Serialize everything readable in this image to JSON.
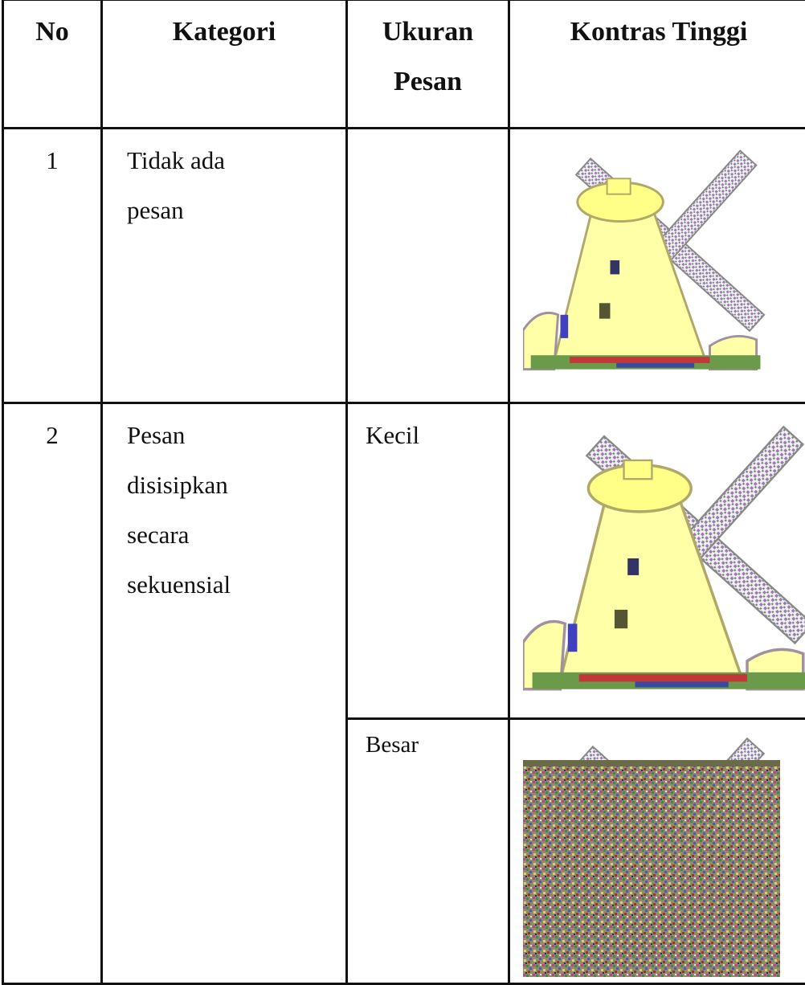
{
  "table": {
    "header": [
      "No",
      "Kategori",
      "Ukuran Pesan",
      "Kontras Tinggi"
    ],
    "rows": [
      {
        "no": "1",
        "category": "Tidak ada pesan"
      },
      {
        "no": "2",
        "category": "Pesan disisipkan secara sekuensial",
        "sizes": [
          "Kecil",
          "Besar"
        ]
      }
    ]
  }
}
